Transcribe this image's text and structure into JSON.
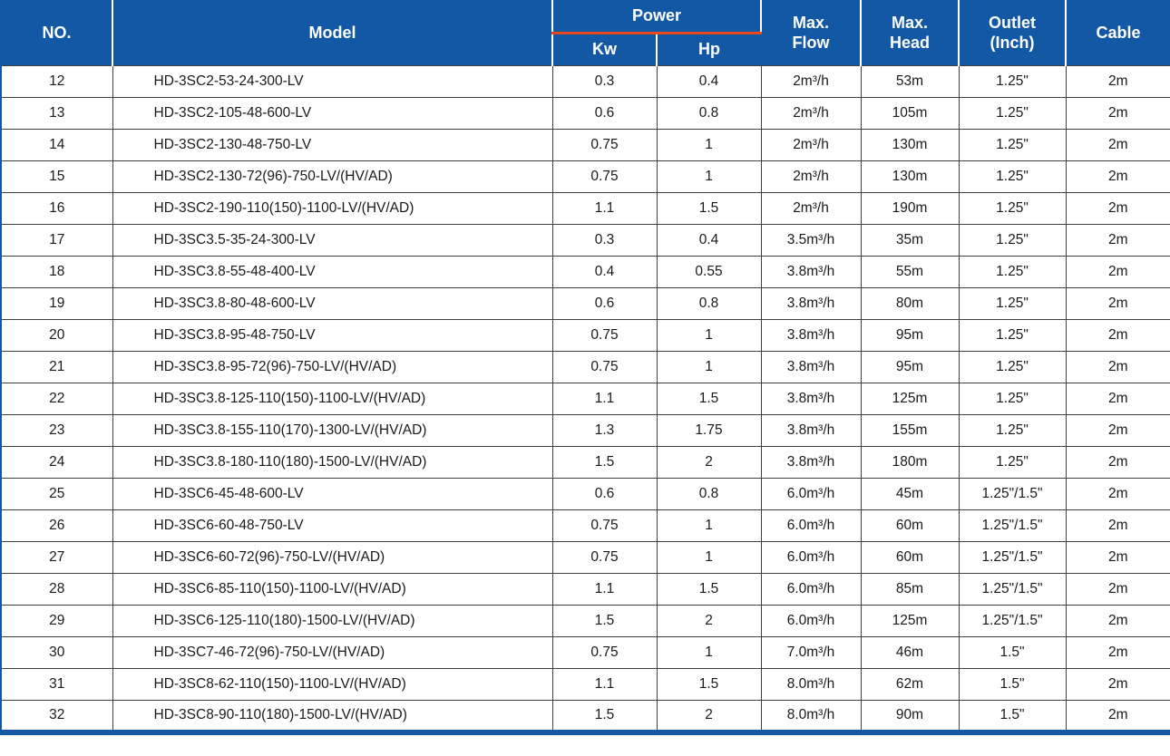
{
  "colors": {
    "header_bg": "#1358a5",
    "header_text": "#ffffff",
    "accent_line": "#e8481e",
    "grid_line": "#404040",
    "outer_border": "#1358a5",
    "body_text": "#1a1a1a"
  },
  "table": {
    "header": {
      "no": "NO.",
      "model": "Model",
      "power": "Power",
      "kw": "Kw",
      "hp": "Hp",
      "max_flow_line1": "Max.",
      "max_flow_line2": "Flow",
      "max_head_line1": "Max.",
      "max_head_line2": "Head",
      "outlet_line1": "Outlet",
      "outlet_line2": "(Inch)",
      "cable": "Cable"
    },
    "rows": [
      {
        "no": "12",
        "model": "HD-3SC2-53-24-300-LV",
        "kw": "0.3",
        "hp": "0.4",
        "flow": "2m³/h",
        "head": "53m",
        "outlet": "1.25\"",
        "cable": "2m"
      },
      {
        "no": "13",
        "model": "HD-3SC2-105-48-600-LV",
        "kw": "0.6",
        "hp": "0.8",
        "flow": "2m³/h",
        "head": "105m",
        "outlet": "1.25\"",
        "cable": "2m"
      },
      {
        "no": "14",
        "model": "HD-3SC2-130-48-750-LV",
        "kw": "0.75",
        "hp": "1",
        "flow": "2m³/h",
        "head": "130m",
        "outlet": "1.25\"",
        "cable": "2m"
      },
      {
        "no": "15",
        "model": "HD-3SC2-130-72(96)-750-LV/(HV/AD)",
        "kw": "0.75",
        "hp": "1",
        "flow": "2m³/h",
        "head": "130m",
        "outlet": "1.25\"",
        "cable": "2m"
      },
      {
        "no": "16",
        "model": "HD-3SC2-190-110(150)-1100-LV/(HV/AD)",
        "kw": "1.1",
        "hp": "1.5",
        "flow": "2m³/h",
        "head": "190m",
        "outlet": "1.25\"",
        "cable": "2m"
      },
      {
        "no": "17",
        "model": "HD-3SC3.5-35-24-300-LV",
        "kw": "0.3",
        "hp": "0.4",
        "flow": "3.5m³/h",
        "head": "35m",
        "outlet": "1.25\"",
        "cable": "2m"
      },
      {
        "no": "18",
        "model": "HD-3SC3.8-55-48-400-LV",
        "kw": "0.4",
        "hp": "0.55",
        "flow": "3.8m³/h",
        "head": "55m",
        "outlet": "1.25\"",
        "cable": "2m"
      },
      {
        "no": "19",
        "model": "HD-3SC3.8-80-48-600-LV",
        "kw": "0.6",
        "hp": "0.8",
        "flow": "3.8m³/h",
        "head": "80m",
        "outlet": "1.25\"",
        "cable": "2m"
      },
      {
        "no": "20",
        "model": "HD-3SC3.8-95-48-750-LV",
        "kw": "0.75",
        "hp": "1",
        "flow": "3.8m³/h",
        "head": "95m",
        "outlet": "1.25\"",
        "cable": "2m"
      },
      {
        "no": "21",
        "model": "HD-3SC3.8-95-72(96)-750-LV/(HV/AD)",
        "kw": "0.75",
        "hp": "1",
        "flow": "3.8m³/h",
        "head": "95m",
        "outlet": "1.25\"",
        "cable": "2m"
      },
      {
        "no": "22",
        "model": "HD-3SC3.8-125-110(150)-1100-LV/(HV/AD)",
        "kw": "1.1",
        "hp": "1.5",
        "flow": "3.8m³/h",
        "head": "125m",
        "outlet": "1.25\"",
        "cable": "2m"
      },
      {
        "no": "23",
        "model": "HD-3SC3.8-155-110(170)-1300-LV/(HV/AD)",
        "kw": "1.3",
        "hp": "1.75",
        "flow": "3.8m³/h",
        "head": "155m",
        "outlet": "1.25\"",
        "cable": "2m"
      },
      {
        "no": "24",
        "model": "HD-3SC3.8-180-110(180)-1500-LV/(HV/AD)",
        "kw": "1.5",
        "hp": "2",
        "flow": "3.8m³/h",
        "head": "180m",
        "outlet": "1.25\"",
        "cable": "2m"
      },
      {
        "no": "25",
        "model": "HD-3SC6-45-48-600-LV",
        "kw": "0.6",
        "hp": "0.8",
        "flow": "6.0m³/h",
        "head": "45m",
        "outlet": "1.25\"/1.5\"",
        "cable": "2m"
      },
      {
        "no": "26",
        "model": "HD-3SC6-60-48-750-LV",
        "kw": "0.75",
        "hp": "1",
        "flow": "6.0m³/h",
        "head": "60m",
        "outlet": "1.25\"/1.5\"",
        "cable": "2m"
      },
      {
        "no": "27",
        "model": "HD-3SC6-60-72(96)-750-LV/(HV/AD)",
        "kw": "0.75",
        "hp": "1",
        "flow": "6.0m³/h",
        "head": "60m",
        "outlet": "1.25\"/1.5\"",
        "cable": "2m"
      },
      {
        "no": "28",
        "model": "HD-3SC6-85-110(150)-1100-LV/(HV/AD)",
        "kw": "1.1",
        "hp": "1.5",
        "flow": "6.0m³/h",
        "head": "85m",
        "outlet": "1.25\"/1.5\"",
        "cable": "2m"
      },
      {
        "no": "29",
        "model": "HD-3SC6-125-110(180)-1500-LV/(HV/AD)",
        "kw": "1.5",
        "hp": "2",
        "flow": "6.0m³/h",
        "head": "125m",
        "outlet": "1.25\"/1.5\"",
        "cable": "2m"
      },
      {
        "no": "30",
        "model": "HD-3SC7-46-72(96)-750-LV/(HV/AD)",
        "kw": "0.75",
        "hp": "1",
        "flow": "7.0m³/h",
        "head": "46m",
        "outlet": "1.5\"",
        "cable": "2m"
      },
      {
        "no": "31",
        "model": "HD-3SC8-62-110(150)-1100-LV/(HV/AD)",
        "kw": "1.1",
        "hp": "1.5",
        "flow": "8.0m³/h",
        "head": "62m",
        "outlet": "1.5\"",
        "cable": "2m"
      },
      {
        "no": "32",
        "model": "HD-3SC8-90-110(180)-1500-LV/(HV/AD)",
        "kw": "1.5",
        "hp": "2",
        "flow": "8.0m³/h",
        "head": "90m",
        "outlet": "1.5\"",
        "cable": "2m"
      }
    ]
  }
}
